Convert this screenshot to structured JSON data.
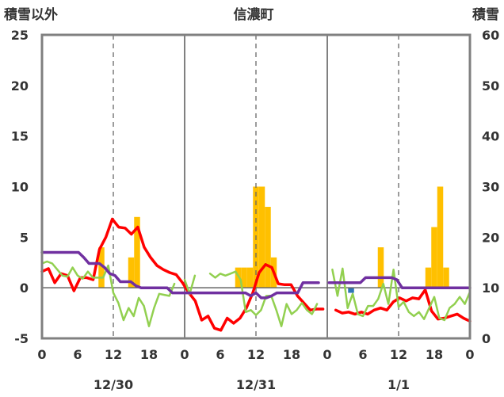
{
  "chart_data": {
    "type": "bar+line",
    "title": "信濃町",
    "y_left_label": "積雪以外",
    "y_right_label": "積雪",
    "y_left_range": [
      -5,
      25
    ],
    "y_left_ticks": [
      "25",
      "20",
      "15",
      "10",
      "5",
      "0",
      "-5"
    ],
    "y_right_range": [
      0,
      60
    ],
    "y_right_ticks": [
      "60",
      "50",
      "40",
      "30",
      "20",
      "10",
      "0"
    ],
    "x_hour_ticks": [
      "0",
      "6",
      "12",
      "18",
      "0",
      "6",
      "12",
      "18",
      "0",
      "6",
      "12",
      "18",
      "0"
    ],
    "x_day_labels": [
      "12/30",
      "12/31",
      "1/1"
    ],
    "grid": "dashed verticals at 12h, solid day separators",
    "colors": {
      "frame": "#808080",
      "red": "#ff0000",
      "green": "#92d050",
      "purple": "#7030a0",
      "orange": "#ffc000",
      "blue": "#2e75b6",
      "zero": "#666666"
    },
    "series": [
      {
        "color": "red",
        "values": [
          1.6,
          1.9,
          0.5,
          1.4,
          1.2,
          -0.3,
          1.0,
          1.0,
          0.8,
          3.8,
          5.0,
          6.8,
          6.0,
          5.9,
          5.3,
          6.0,
          4.0,
          3.0,
          2.2,
          1.8,
          1.5,
          1.3,
          0.5,
          -0.5,
          -1.3,
          -3.2,
          -2.8,
          -4.0,
          -4.2,
          -3.0,
          -3.5,
          -3.0,
          -2.0,
          -0.5,
          1.5,
          2.3,
          2.0,
          0.4,
          0.3,
          0.3,
          -0.8,
          -1.5,
          -2.2,
          -2.1,
          -2.1,
          null,
          -2.2,
          -2.5,
          -2.4,
          -2.6,
          -2.4,
          -2.6,
          -2.2,
          -2.0,
          -2.2,
          -1.4,
          -1.0,
          -1.3,
          -1.0,
          -1.1,
          -0.2,
          -2.3,
          -3.1,
          -3.0,
          -2.8,
          -2.6,
          -3.0,
          -3.3
        ]
      },
      {
        "color": "green",
        "values": [
          2.4,
          2.6,
          2.4,
          1.8,
          1.2,
          1.1,
          2.0,
          1.2,
          0.9,
          1.6,
          1.0,
          1.0,
          1.0,
          2.2,
          -0.5,
          -1.5,
          -3.2,
          -2.0,
          -2.8,
          -1.0,
          -1.8,
          -3.8,
          -2.0,
          -0.6,
          -0.7,
          -0.8,
          0.4,
          null,
          0.8,
          -0.6,
          1.2,
          null,
          null,
          1.4,
          1.0,
          1.4,
          1.2,
          1.4,
          1.6,
          0.8,
          -2.4,
          -2.2,
          -2.7,
          -2.2,
          -0.8,
          -0.8,
          -2.2,
          -3.8,
          -1.6,
          -2.6,
          -2.2,
          -1.5,
          -2.2,
          -2.6,
          -1.6,
          null,
          null,
          1.8,
          -0.8,
          1.9,
          -2.0,
          -0.6,
          -2.6,
          -2.8,
          -1.8,
          -1.8,
          -1.1,
          0.4,
          -1.6,
          1.8,
          -1.9,
          -1.4,
          -2.4,
          -2.8,
          -2.4,
          -3.1,
          -2.0,
          -0.9,
          -3.0,
          -3.2,
          -2.0,
          -1.6,
          -0.9,
          -1.6,
          -0.4
        ]
      },
      {
        "color": "purple",
        "values": [
          3.5,
          3.5,
          3.5,
          3.5,
          3.5,
          3.5,
          3.5,
          3.5,
          3.0,
          2.4,
          2.4,
          2.4,
          2.0,
          1.4,
          1.2,
          0.6,
          0.6,
          0.6,
          0.2,
          0.0,
          0.0,
          0.0,
          0.0,
          0.0,
          0.0,
          -0.5,
          -0.5,
          -0.5,
          -0.5,
          -0.5,
          -0.5,
          -0.5,
          -0.5,
          -0.5,
          -0.5,
          -0.5,
          -0.5,
          -0.5,
          -0.5,
          -0.5,
          -0.8,
          -0.5,
          -1.0,
          -1.0,
          -0.8,
          -0.5,
          -0.5,
          -0.5,
          -0.5,
          -0.5,
          0.5,
          0.5,
          0.5,
          0.5,
          null,
          0.5,
          0.5,
          0.5,
          0.5,
          0.5,
          0.5,
          0.5,
          1.0,
          1.0,
          1.0,
          1.0,
          1.0,
          1.0,
          0.8,
          0.0,
          0.0,
          0.0,
          0.0,
          0.0,
          0.0,
          0.0,
          0.0,
          0.0,
          0.0,
          0.0,
          0.0,
          0.0,
          0.0
        ]
      }
    ],
    "bars": [
      {
        "hour": 10,
        "value": 4,
        "color": "orange"
      },
      {
        "hour": 15,
        "value": 3,
        "color": "orange"
      },
      {
        "hour": 16,
        "value": 7,
        "color": "orange"
      },
      {
        "hour": 33,
        "value": 2,
        "color": "orange"
      },
      {
        "hour": 34,
        "value": 2,
        "color": "orange"
      },
      {
        "hour": 35,
        "value": 2,
        "color": "orange"
      },
      {
        "hour": 36,
        "value": 10,
        "color": "orange"
      },
      {
        "hour": 37,
        "value": 10,
        "color": "orange"
      },
      {
        "hour": 38,
        "value": 8,
        "color": "orange"
      },
      {
        "hour": 39,
        "value": 3,
        "color": "orange"
      },
      {
        "hour": 52,
        "value": -0.5,
        "color": "blue"
      },
      {
        "hour": 57,
        "value": 4,
        "color": "orange"
      },
      {
        "hour": 65,
        "value": 2,
        "color": "orange"
      },
      {
        "hour": 66,
        "value": 6,
        "color": "orange"
      },
      {
        "hour": 67,
        "value": 10,
        "color": "orange"
      },
      {
        "hour": 68,
        "value": 2,
        "color": "orange"
      }
    ]
  }
}
